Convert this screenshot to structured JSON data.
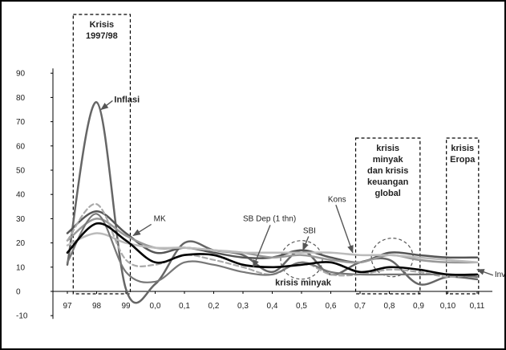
{
  "chart_data": {
    "type": "line",
    "title": "",
    "xlabel": "",
    "ylabel": "",
    "x": [
      "97",
      "98",
      "99",
      "0,0",
      "0,1",
      "0,2",
      "0,3",
      "0,4",
      "0,5",
      "0,6",
      "0,7",
      "0,8",
      "0,9",
      "0,10",
      "0,11"
    ],
    "ylim": [
      -10,
      90
    ],
    "yticks": [
      -10,
      0,
      10,
      20,
      30,
      40,
      50,
      60,
      70,
      80,
      90
    ],
    "grid": false,
    "legend": "none",
    "series": [
      {
        "name": "Inflasi",
        "color": "#666666",
        "width": 2.5,
        "dash": "",
        "values": [
          11,
          78,
          1,
          3,
          20,
          17,
          15,
          8,
          17,
          7,
          12,
          13,
          3,
          6,
          5
        ]
      },
      {
        "name": "",
        "color": "#555555",
        "width": 2.5,
        "dash": "",
        "values": [
          24,
          33,
          24,
          16,
          18,
          16,
          14,
          14,
          17,
          14,
          12,
          16,
          15,
          14,
          14
        ]
      },
      {
        "name": "MK",
        "color": "#999999",
        "width": 2.5,
        "dash": "",
        "values": [
          21,
          30,
          23,
          18,
          18,
          17,
          16,
          14,
          15,
          13,
          12,
          15,
          13,
          12,
          12
        ]
      },
      {
        "name": "",
        "color": "#bbbbbb",
        "width": 2.5,
        "dash": "",
        "values": [
          19,
          24,
          20,
          18,
          18,
          17,
          16,
          16,
          16,
          16,
          15,
          15,
          14,
          13,
          12
        ]
      },
      {
        "name": "SB Dep (1 thn)",
        "color": "#aaaaaa",
        "width": 2.2,
        "dash": "6,4",
        "values": [
          21,
          36,
          13,
          11,
          15,
          13,
          10,
          7,
          12,
          7,
          7,
          9,
          8,
          6,
          7
        ]
      },
      {
        "name": "SBI",
        "color": "#777777",
        "width": 2.2,
        "dash": "",
        "values": [
          12,
          32,
          8,
          4,
          12,
          11,
          8,
          7,
          12,
          8,
          7,
          7,
          7,
          7,
          6
        ]
      },
      {
        "name": "",
        "color": "#000000",
        "width": 2.6,
        "dash": "",
        "values": [
          16,
          28,
          21,
          12,
          15,
          15,
          11,
          10,
          11,
          12,
          8,
          10,
          9,
          7,
          7
        ]
      }
    ],
    "annotations": [
      {
        "text": "Inflasi",
        "x": 1.6,
        "y": 78,
        "ax": 1.15,
        "ay": 75
      },
      {
        "text": "MK",
        "x": 2.95,
        "y": 29,
        "ax": 2.25,
        "ay": 23
      },
      {
        "text": "SB Dep (1 thn)",
        "x": 6.0,
        "y": 29,
        "ax": 6.35,
        "ay": 10
      },
      {
        "text": "SBI",
        "x": 8.05,
        "y": 24,
        "ax": 8.05,
        "ay": 17
      },
      {
        "text": "Kons",
        "x": 8.9,
        "y": 37,
        "ax": 9.75,
        "ay": 16
      },
      {
        "text": "Inv",
        "x": 14.6,
        "y": 6,
        "ax": 14.0,
        "ay": 9
      }
    ],
    "period_boxes": [
      {
        "lines": [
          "Krisis",
          "1997/98"
        ],
        "x0": 0.2,
        "x1": 2.15
      },
      {
        "lines": [
          "krisis",
          "minyak",
          "dan krisis",
          "keuangan",
          "global"
        ],
        "x0": 9.85,
        "x1": 12.05
      },
      {
        "lines": [
          "krisis",
          "Eropa"
        ],
        "x0": 12.95,
        "x1": 14.05
      }
    ],
    "circles": [
      {
        "x": 8.0,
        "y": 13
      },
      {
        "x": 11.1,
        "y": 14
      }
    ],
    "label_krisis_minyak": "krisis minyak"
  }
}
